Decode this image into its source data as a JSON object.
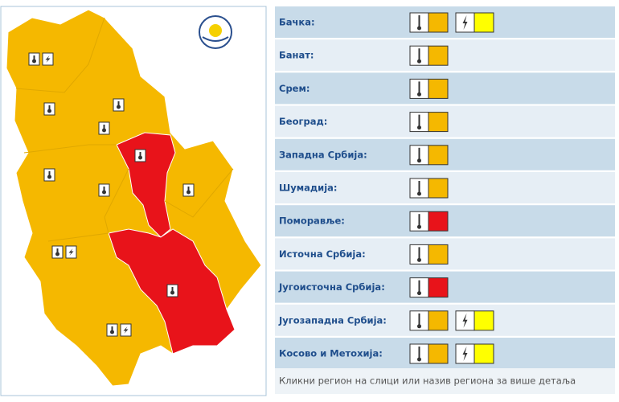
{
  "regions": [
    {
      "name": "Бачка:",
      "warnings": [
        {
          "icon": "temperature",
          "color": "#f5b800"
        },
        {
          "icon": "storm",
          "color": "#ffff00"
        }
      ]
    },
    {
      "name": "Банат:",
      "warnings": [
        {
          "icon": "temperature",
          "color": "#f5b800"
        }
      ]
    },
    {
      "name": "Срем:",
      "warnings": [
        {
          "icon": "temperature",
          "color": "#f5b800"
        }
      ]
    },
    {
      "name": "Београд:",
      "warnings": [
        {
          "icon": "temperature",
          "color": "#f5b800"
        }
      ]
    },
    {
      "name": "Западна Србија:",
      "warnings": [
        {
          "icon": "temperature",
          "color": "#f5b800"
        }
      ]
    },
    {
      "name": "Шумадија:",
      "warnings": [
        {
          "icon": "temperature",
          "color": "#f5b800"
        }
      ]
    },
    {
      "name": "Поморавље:",
      "warnings": [
        {
          "icon": "temperature",
          "color": "#e8131a"
        }
      ]
    },
    {
      "name": "Источна Србија:",
      "warnings": [
        {
          "icon": "temperature",
          "color": "#f5b800"
        }
      ]
    },
    {
      "name": "Југоисточна Србија:",
      "warnings": [
        {
          "icon": "temperature",
          "color": "#e8131a"
        }
      ]
    },
    {
      "name": "Југозападна Србија:",
      "warnings": [
        {
          "icon": "temperature",
          "color": "#f5b800"
        },
        {
          "icon": "storm",
          "color": "#ffff00"
        }
      ]
    },
    {
      "name": "Косово и Метохија:",
      "warnings": [
        {
          "icon": "temperature",
          "color": "#f5b800"
        },
        {
          "icon": "storm",
          "color": "#ffff00"
        }
      ]
    }
  ],
  "footer": "Кликни регион на слици или назив региона за више детаља"
}
